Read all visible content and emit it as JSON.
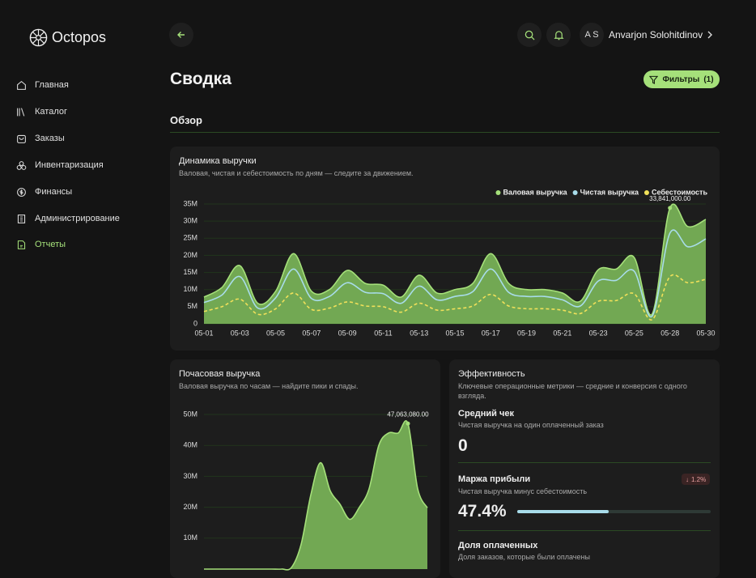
{
  "brand": "Octopos",
  "nav": [
    "Главная",
    "Каталог",
    "Заказы",
    "Инвентаризация",
    "Финансы",
    "Администрирование",
    "Отчеты"
  ],
  "user": {
    "initials": "A S",
    "name": "Anvarjon Solohitdinov"
  },
  "page": {
    "title": "Сводка",
    "filters": "Фильтры",
    "filters_count": "(1)",
    "section": "Обзор"
  },
  "chart_data": [
    {
      "type": "area",
      "title": "Динамика выручки",
      "subtitle": "Валовая, чистая и себестоимость по дням — следите за движением.",
      "categories": [
        "05-01",
        null,
        "05-03",
        null,
        "05-05",
        null,
        "05-07",
        null,
        "05-09",
        null,
        "05-11",
        null,
        "05-13",
        null,
        "05-15",
        null,
        "05-17",
        null,
        "05-19",
        null,
        "05-21",
        null,
        "05-23",
        null,
        "05-25",
        null,
        "05-28",
        null,
        "05-30"
      ],
      "ylim": [
        0,
        35000000
      ],
      "yticks": [
        0,
        {
          "value": 5000000,
          "label": "5M"
        },
        {
          "value": 10000000,
          "label": "10M"
        },
        {
          "value": 15000000,
          "label": "15M"
        },
        {
          "value": 20000000,
          "label": "20M"
        },
        {
          "value": 25000000,
          "label": "25M"
        },
        {
          "value": 30000000,
          "label": "30M"
        },
        {
          "value": 35000000,
          "label": "35M"
        }
      ],
      "grid": true,
      "legend": "top-right",
      "series": [
        {
          "name": "Валовая выручка",
          "color": "#a5e07a",
          "fill": true,
          "dashed": false,
          "values": [
            7800000,
            10600000,
            17000000,
            6000000,
            9500000,
            20500000,
            9500000,
            10000000,
            15600000,
            11800000,
            11300000,
            7800000,
            14200000,
            9000000,
            10000000,
            11800000,
            20500000,
            11800000,
            10000000,
            10000000,
            9000000,
            6600000,
            15800000,
            16000000,
            19400000,
            2800000,
            33841000,
            28400000,
            30500000
          ],
          "value_labels": [
            null,
            null,
            null,
            null,
            null,
            null,
            null,
            null,
            null,
            null,
            null,
            null,
            null,
            null,
            null,
            null,
            null,
            null,
            null,
            null,
            null,
            null,
            null,
            null,
            null,
            null,
            "33,841,000.00",
            null,
            null
          ]
        },
        {
          "name": "Чистая выручка",
          "color": "#a8dcea",
          "fill": false,
          "dashed": false,
          "values": [
            6200000,
            8400000,
            13800000,
            4600000,
            7600000,
            16000000,
            7400000,
            8000000,
            12000000,
            9200000,
            8800000,
            6000000,
            11000000,
            7000000,
            8000000,
            9400000,
            16000000,
            9200000,
            8000000,
            8000000,
            7000000,
            5200000,
            12500000,
            12700000,
            15400000,
            2200000,
            26500000,
            22500000,
            24800000
          ]
        },
        {
          "name": "Себестоимость",
          "color": "#f0e05a",
          "fill": false,
          "dashed": true,
          "values": [
            3600000,
            5000000,
            7200000,
            2800000,
            4400000,
            9000000,
            4200000,
            4600000,
            6400000,
            5200000,
            5000000,
            3400000,
            6000000,
            4000000,
            4400000,
            5200000,
            8600000,
            5200000,
            4400000,
            4400000,
            4000000,
            3000000,
            6600000,
            6800000,
            8800000,
            1200000,
            13800000,
            12000000,
            13000000
          ]
        }
      ]
    },
    {
      "type": "area",
      "title": "Почасовая выручка",
      "subtitle": "Валовая выручка по часам — найдите пики и спады.",
      "ylim": [
        0,
        50000000
      ],
      "yticks": [
        {
          "value": 10000000,
          "label": "10M"
        },
        {
          "value": 20000000,
          "label": "20M"
        },
        {
          "value": 30000000,
          "label": "30M"
        },
        {
          "value": 40000000,
          "label": "40M"
        },
        {
          "value": 50000000,
          "label": "50M"
        }
      ],
      "grid": true,
      "series": [
        {
          "color": "#a5e07a",
          "fill": true,
          "dashed": false,
          "values": [
            0,
            0,
            0,
            0,
            0,
            0,
            0,
            0,
            0,
            500000,
            8000000,
            24000000,
            34400000,
            25300000,
            21000000,
            16100000,
            20000000,
            26000000,
            40000000,
            44000000,
            44000000,
            47063080,
            26000000,
            19800000
          ],
          "value_labels": [
            null,
            null,
            null,
            null,
            null,
            null,
            null,
            null,
            null,
            null,
            null,
            null,
            null,
            null,
            null,
            null,
            null,
            null,
            null,
            null,
            null,
            "47,063,080.00",
            null,
            null
          ]
        }
      ]
    }
  ],
  "efficiency": {
    "title": "Эффективность",
    "subtitle": "Ключевые операционные метрики — средние и конверсия с одного взгляда.",
    "avg_check": {
      "title": "Средний чек",
      "desc": "Чистая выручка на один оплаченный заказ",
      "value": "0"
    },
    "margin": {
      "title": "Маржа прибыли",
      "desc": "Чистая выручка минус себестоимость",
      "value": 47.4,
      "value_label": "47.4%",
      "change": "1.2%"
    },
    "paid_share": {
      "title": "Доля оплаченных",
      "desc": "Доля заказов, которые были оплачены"
    }
  }
}
